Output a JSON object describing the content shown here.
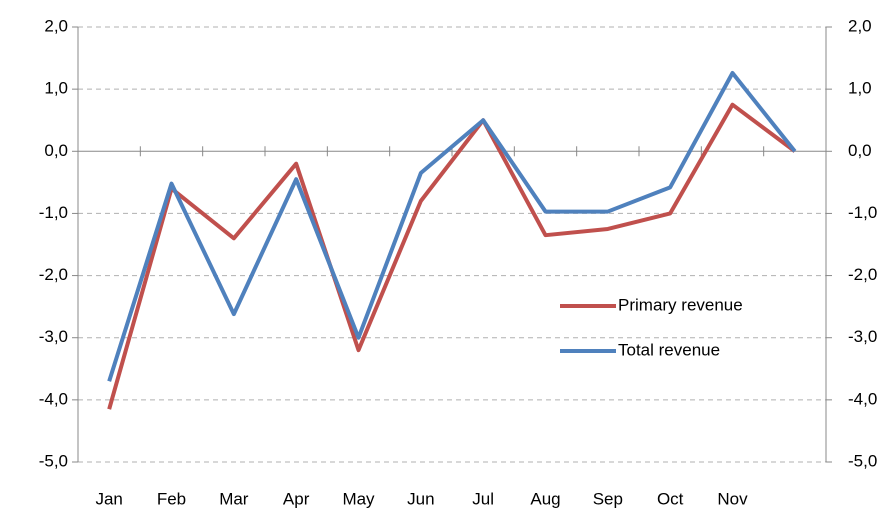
{
  "chart_data": {
    "type": "line",
    "categories": [
      "Jan",
      "Feb",
      "Mar",
      "Apr",
      "May",
      "Jun",
      "Jul",
      "Aug",
      "Sep",
      "Oct",
      "Nov",
      null
    ],
    "series": [
      {
        "name": "Primary revenue",
        "color": "#c0504d",
        "values": [
          -4.15,
          -0.6,
          -1.4,
          -0.2,
          -3.2,
          -0.8,
          0.5,
          -1.35,
          -1.25,
          -1.0,
          0.75,
          0.0
        ]
      },
      {
        "name": "Total revenue",
        "color": "#4f81bd",
        "values": [
          -3.7,
          -0.52,
          -2.62,
          -0.45,
          -3.0,
          -0.35,
          0.5,
          -0.97,
          -0.97,
          -0.58,
          1.26,
          0.0
        ]
      }
    ],
    "ylim": [
      -5,
      2
    ],
    "yticks": [
      {
        "value": -5,
        "label": "-5,0"
      },
      {
        "value": -4,
        "label": "-4,0"
      },
      {
        "value": -3,
        "label": "-3,0"
      },
      {
        "value": -2,
        "label": "-2,0"
      },
      {
        "value": -1,
        "label": "-1,0"
      },
      {
        "value": 0,
        "label": "0,0"
      },
      {
        "value": 1,
        "label": "1,0"
      },
      {
        "value": 2,
        "label": "2,0"
      }
    ],
    "y2lim": [
      -5,
      2
    ],
    "y2ticks": [
      {
        "value": -5,
        "label": "-5,0"
      },
      {
        "value": -4,
        "label": "-4,0"
      },
      {
        "value": -3,
        "label": "-3,0"
      },
      {
        "value": -2,
        "label": "-2,0"
      },
      {
        "value": -1,
        "label": "-1,0"
      },
      {
        "value": 0,
        "label": "0,0"
      },
      {
        "value": 1,
        "label": "1,0"
      },
      {
        "value": 2,
        "label": "2,0"
      }
    ],
    "grid": true,
    "legend": "lower right"
  }
}
